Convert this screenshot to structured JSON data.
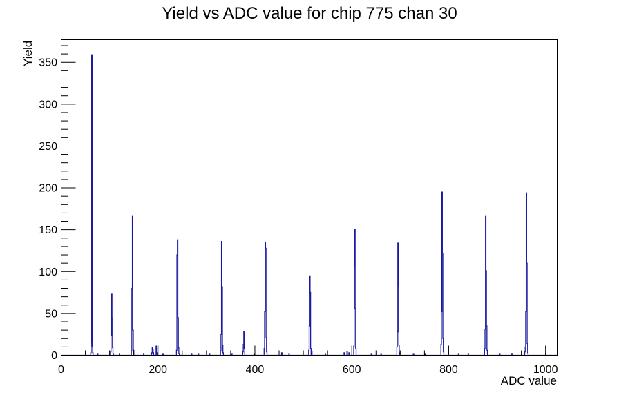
{
  "title": "Yield vs ADC value for chip 775 chan 30",
  "chart_data": {
    "type": "bar",
    "title": "Yield vs ADC value for chip 775 chan 30",
    "xlabel": "ADC value",
    "ylabel": "Yield",
    "xlim": [
      0,
      1024
    ],
    "ylim": [
      0,
      377
    ],
    "x_major_ticks": [
      0,
      200,
      400,
      600,
      800,
      1000
    ],
    "x_minor_step": 50,
    "y_major_ticks": [
      0,
      50,
      100,
      150,
      200,
      250,
      300,
      350
    ],
    "y_minor_step": 10,
    "grid": false,
    "legend": false,
    "line_color": "#1a1aa0",
    "axis_color": "#000000",
    "background_color": "#ffffff",
    "bins": [
      [
        61,
        3
      ],
      [
        62,
        15
      ],
      [
        63,
        359
      ],
      [
        64,
        11
      ],
      [
        65,
        3
      ],
      [
        75,
        2
      ],
      [
        102,
        4
      ],
      [
        103,
        24
      ],
      [
        104,
        73
      ],
      [
        105,
        44
      ],
      [
        106,
        9
      ],
      [
        107,
        2
      ],
      [
        120,
        2
      ],
      [
        145,
        5
      ],
      [
        146,
        80
      ],
      [
        147,
        166
      ],
      [
        148,
        30
      ],
      [
        149,
        6
      ],
      [
        170,
        2
      ],
      [
        187,
        3
      ],
      [
        188,
        9
      ],
      [
        189,
        7
      ],
      [
        190,
        3
      ],
      [
        196,
        11
      ],
      [
        197,
        3
      ],
      [
        210,
        2
      ],
      [
        238,
        6
      ],
      [
        239,
        120
      ],
      [
        240,
        138
      ],
      [
        241,
        45
      ],
      [
        242,
        9
      ],
      [
        243,
        2
      ],
      [
        269,
        2
      ],
      [
        283,
        2
      ],
      [
        306,
        2
      ],
      [
        329,
        5
      ],
      [
        330,
        25
      ],
      [
        331,
        136
      ],
      [
        332,
        82
      ],
      [
        333,
        12
      ],
      [
        334,
        3
      ],
      [
        352,
        2
      ],
      [
        375,
        4
      ],
      [
        376,
        13
      ],
      [
        377,
        28
      ],
      [
        378,
        8
      ],
      [
        398,
        2
      ],
      [
        419,
        8
      ],
      [
        420,
        52
      ],
      [
        421,
        135
      ],
      [
        422,
        128
      ],
      [
        423,
        21
      ],
      [
        424,
        4
      ],
      [
        455,
        3
      ],
      [
        470,
        2
      ],
      [
        511,
        6
      ],
      [
        512,
        35
      ],
      [
        513,
        95
      ],
      [
        514,
        75
      ],
      [
        515,
        8
      ],
      [
        517,
        4
      ],
      [
        545,
        2
      ],
      [
        584,
        3
      ],
      [
        590,
        4
      ],
      [
        594,
        3
      ],
      [
        604,
        11
      ],
      [
        605,
        106
      ],
      [
        606,
        150
      ],
      [
        607,
        56
      ],
      [
        608,
        8
      ],
      [
        640,
        2
      ],
      [
        660,
        2
      ],
      [
        693,
        10
      ],
      [
        694,
        28
      ],
      [
        695,
        134
      ],
      [
        696,
        83
      ],
      [
        697,
        12
      ],
      [
        698,
        3
      ],
      [
        727,
        2
      ],
      [
        751,
        2
      ],
      [
        784,
        13
      ],
      [
        785,
        52
      ],
      [
        786,
        195
      ],
      [
        787,
        122
      ],
      [
        788,
        20
      ],
      [
        789,
        4
      ],
      [
        820,
        2
      ],
      [
        840,
        2
      ],
      [
        874,
        8
      ],
      [
        875,
        31
      ],
      [
        876,
        166
      ],
      [
        877,
        101
      ],
      [
        878,
        35
      ],
      [
        879,
        6
      ],
      [
        905,
        2
      ],
      [
        930,
        2
      ],
      [
        957,
        4
      ],
      [
        958,
        10
      ],
      [
        959,
        52
      ],
      [
        960,
        194
      ],
      [
        961,
        110
      ],
      [
        962,
        14
      ],
      [
        963,
        3
      ],
      [
        1000,
        2
      ]
    ]
  }
}
